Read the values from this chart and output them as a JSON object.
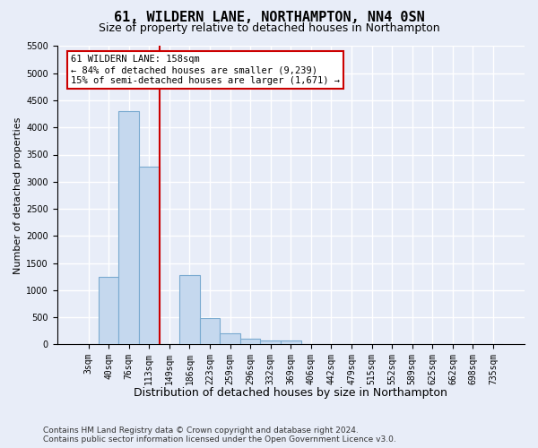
{
  "title": "61, WILDERN LANE, NORTHAMPTON, NN4 0SN",
  "subtitle": "Size of property relative to detached houses in Northampton",
  "xlabel": "Distribution of detached houses by size in Northampton",
  "ylabel": "Number of detached properties",
  "categories": [
    "3sqm",
    "40sqm",
    "76sqm",
    "113sqm",
    "149sqm",
    "186sqm",
    "223sqm",
    "259sqm",
    "296sqm",
    "332sqm",
    "369sqm",
    "406sqm",
    "442sqm",
    "479sqm",
    "515sqm",
    "552sqm",
    "589sqm",
    "625sqm",
    "662sqm",
    "698sqm",
    "735sqm"
  ],
  "values": [
    0,
    1250,
    4300,
    3280,
    0,
    1270,
    490,
    210,
    100,
    65,
    65,
    0,
    0,
    0,
    0,
    0,
    0,
    0,
    0,
    0,
    0
  ],
  "bar_color": "#c5d8ee",
  "bar_edge_color": "#7aaad0",
  "vline_color": "#cc0000",
  "vline_x": 3.5,
  "annotation_text": "61 WILDERN LANE: 158sqm\n← 84% of detached houses are smaller (9,239)\n15% of semi-detached houses are larger (1,671) →",
  "annotation_box_color": "white",
  "annotation_box_edge_color": "#cc0000",
  "ylim_max": 5500,
  "yticks": [
    0,
    500,
    1000,
    1500,
    2000,
    2500,
    3000,
    3500,
    4000,
    4500,
    5000,
    5500
  ],
  "footer_line1": "Contains HM Land Registry data © Crown copyright and database right 2024.",
  "footer_line2": "Contains public sector information licensed under the Open Government Licence v3.0.",
  "bg_color": "#e8edf8",
  "grid_color": "#ffffff",
  "title_fontsize": 11,
  "subtitle_fontsize": 9,
  "ylabel_fontsize": 8,
  "xlabel_fontsize": 9,
  "tick_fontsize": 7,
  "annot_fontsize": 7.5,
  "footer_fontsize": 6.5
}
